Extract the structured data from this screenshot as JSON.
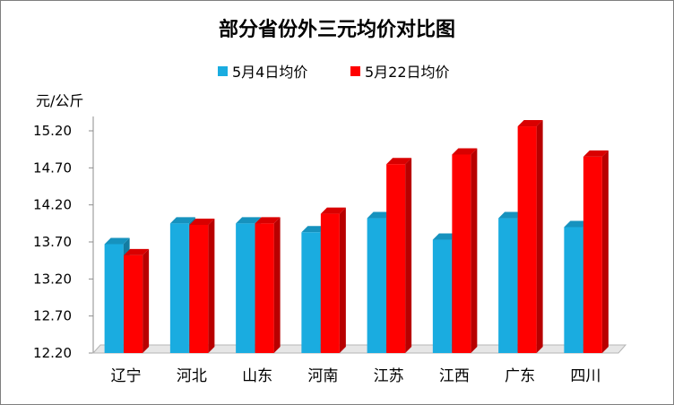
{
  "chart_data": {
    "type": "bar",
    "title": "部分省份外三元均价对比图",
    "ylabel": "元/公斤",
    "xlabel": "",
    "categories": [
      "辽宁",
      "河北",
      "山东",
      "河南",
      "江苏",
      "江西",
      "广东",
      "四川"
    ],
    "series": [
      {
        "name": "5月4日均价",
        "color": "#1aace0",
        "values": [
          13.67,
          13.95,
          13.95,
          13.83,
          14.02,
          13.73,
          14.02,
          13.9
        ]
      },
      {
        "name": "5月22日均价",
        "color": "#ff0000",
        "values": [
          13.52,
          13.93,
          13.95,
          14.08,
          14.75,
          14.88,
          15.26,
          14.85
        ]
      }
    ],
    "ylim": [
      12.2,
      15.2
    ],
    "yticks": [
      "12.20",
      "12.70",
      "13.20",
      "13.70",
      "14.20",
      "14.70",
      "15.20"
    ],
    "legend_position": "top-center",
    "grid": false,
    "bar_style": "3d"
  }
}
